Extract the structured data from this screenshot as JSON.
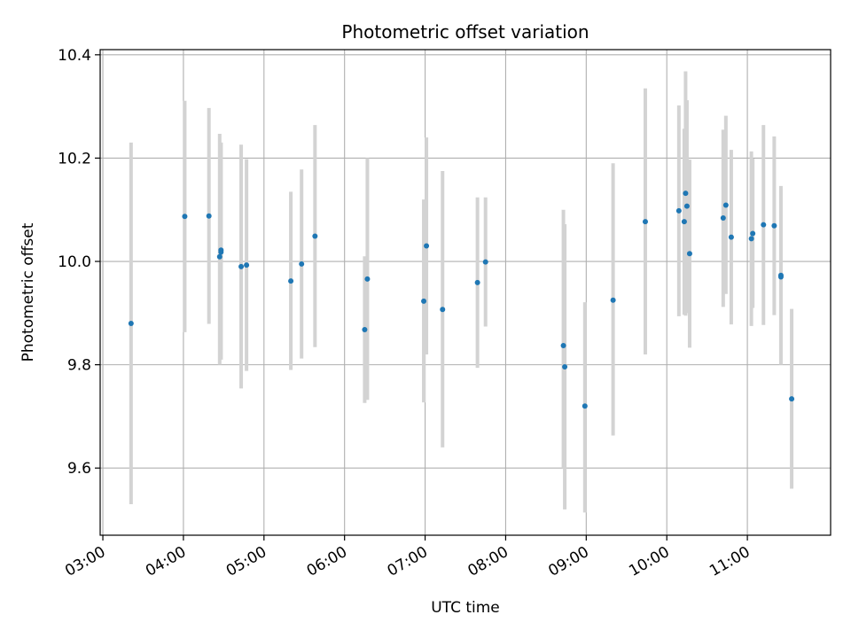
{
  "chart_data": {
    "type": "scatter",
    "title": "Photometric offset variation",
    "xlabel": "UTC time",
    "ylabel": "Photometric offset",
    "xlim": [
      "02:58",
      "12:02"
    ],
    "ylim": [
      9.47,
      10.41
    ],
    "xticks": [
      "03:00",
      "04:00",
      "05:00",
      "06:00",
      "07:00",
      "08:00",
      "09:00",
      "10:00",
      "11:00"
    ],
    "yticks": [
      9.6,
      9.8,
      10.0,
      10.2,
      10.4
    ],
    "grid": true,
    "legend": "none",
    "colors": {
      "point": "#1f77b4",
      "errorbar": "#d3d3d3",
      "grid": "#b0b0b0",
      "axes": "#000000"
    },
    "series": [
      {
        "points": [
          {
            "x": "03:21",
            "y": 9.88,
            "lo": 9.53,
            "hi": 10.23
          },
          {
            "x": "04:01",
            "y": 10.087,
            "lo": 9.863,
            "hi": 10.311
          },
          {
            "x": "04:19",
            "y": 10.088,
            "lo": 9.879,
            "hi": 10.297
          },
          {
            "x": "04:27",
            "y": 10.009,
            "lo": 9.8,
            "hi": 10.247
          },
          {
            "x": "04:28",
            "y": 10.022,
            "lo": 9.81,
            "hi": 10.23
          },
          {
            "x": "04:28",
            "y": 10.018,
            "lo": 9.81,
            "hi": 10.23
          },
          {
            "x": "04:43",
            "y": 9.99,
            "lo": 9.754,
            "hi": 10.226
          },
          {
            "x": "04:47",
            "y": 9.993,
            "lo": 9.788,
            "hi": 10.198
          },
          {
            "x": "05:20",
            "y": 9.962,
            "lo": 9.79,
            "hi": 10.135
          },
          {
            "x": "05:28",
            "y": 9.995,
            "lo": 9.812,
            "hi": 10.178
          },
          {
            "x": "05:38",
            "y": 10.049,
            "lo": 9.834,
            "hi": 10.264
          },
          {
            "x": "06:15",
            "y": 9.868,
            "lo": 9.726,
            "hi": 10.01
          },
          {
            "x": "06:17",
            "y": 9.966,
            "lo": 9.732,
            "hi": 10.2
          },
          {
            "x": "06:59",
            "y": 9.923,
            "lo": 9.727,
            "hi": 10.12
          },
          {
            "x": "07:01",
            "y": 10.03,
            "lo": 9.82,
            "hi": 10.24
          },
          {
            "x": "07:13",
            "y": 9.907,
            "lo": 9.64,
            "hi": 10.175
          },
          {
            "x": "07:39",
            "y": 9.959,
            "lo": 9.794,
            "hi": 10.124
          },
          {
            "x": "07:45",
            "y": 9.999,
            "lo": 9.874,
            "hi": 10.124
          },
          {
            "x": "08:43",
            "y": 9.837,
            "lo": 9.6,
            "hi": 10.1
          },
          {
            "x": "08:44",
            "y": 9.796,
            "lo": 9.52,
            "hi": 10.072
          },
          {
            "x": "08:59",
            "y": 9.72,
            "lo": 9.514,
            "hi": 9.921
          },
          {
            "x": "09:20",
            "y": 9.925,
            "lo": 9.663,
            "hi": 10.19
          },
          {
            "x": "09:44",
            "y": 10.077,
            "lo": 9.82,
            "hi": 10.335
          },
          {
            "x": "10:09",
            "y": 10.098,
            "lo": 9.894,
            "hi": 10.302
          },
          {
            "x": "10:13",
            "y": 10.077,
            "lo": 9.897,
            "hi": 10.257
          },
          {
            "x": "10:14",
            "y": 10.132,
            "lo": 9.895,
            "hi": 10.368
          },
          {
            "x": "10:15",
            "y": 10.107,
            "lo": 9.9,
            "hi": 10.312
          },
          {
            "x": "10:17",
            "y": 10.015,
            "lo": 9.833,
            "hi": 10.197
          },
          {
            "x": "10:42",
            "y": 10.084,
            "lo": 9.912,
            "hi": 10.255
          },
          {
            "x": "10:44",
            "y": 10.109,
            "lo": 9.937,
            "hi": 10.282
          },
          {
            "x": "10:48",
            "y": 10.047,
            "lo": 9.878,
            "hi": 10.216
          },
          {
            "x": "11:03",
            "y": 10.044,
            "lo": 9.875,
            "hi": 10.213
          },
          {
            "x": "11:04",
            "y": 10.054,
            "lo": 9.91,
            "hi": 10.199
          },
          {
            "x": "11:12",
            "y": 10.071,
            "lo": 9.877,
            "hi": 10.264
          },
          {
            "x": "11:20",
            "y": 10.069,
            "lo": 9.896,
            "hi": 10.242
          },
          {
            "x": "11:25",
            "y": 9.973,
            "lo": 9.8,
            "hi": 10.146
          },
          {
            "x": "11:25",
            "y": 9.97,
            "lo": 9.8,
            "hi": 10.14
          },
          {
            "x": "11:33",
            "y": 9.734,
            "lo": 9.56,
            "hi": 9.908
          }
        ]
      }
    ]
  }
}
